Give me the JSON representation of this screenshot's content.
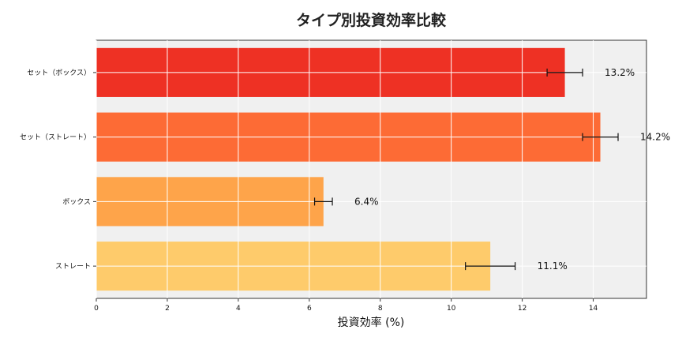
{
  "chart_data": {
    "type": "bar",
    "orientation": "horizontal",
    "title": "タイプ別投資効率比較",
    "xlabel": "投資効率 (%)",
    "ylabel": "",
    "xlim": [
      0,
      15.5
    ],
    "xticks": [
      0,
      2,
      4,
      6,
      8,
      10,
      12,
      14
    ],
    "grid": true,
    "categories": [
      "セット（ボックス）",
      "セット（ストレート）",
      "ボックス",
      "ストレート"
    ],
    "values": [
      13.2,
      14.2,
      6.4,
      11.1
    ],
    "errors": [
      0.5,
      0.5,
      0.25,
      0.7
    ],
    "data_labels": [
      "13.2%",
      "14.2%",
      "6.4%",
      "11.1%"
    ],
    "colors": [
      "#ee3124",
      "#fd6b35",
      "#fea44a",
      "#fecb6b"
    ],
    "plot_background": "#f0f0f0"
  }
}
